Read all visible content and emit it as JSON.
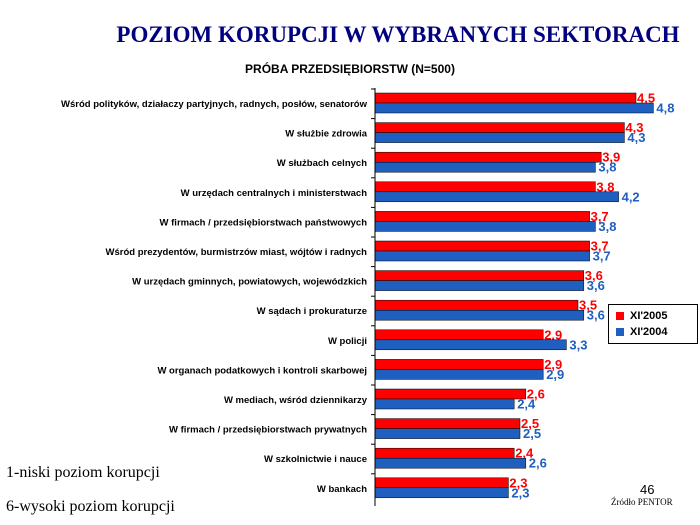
{
  "title": "POZIOM KORUPCJI W WYBRANYCH SEKTORACH",
  "subtitle": "PRÓBA PRZEDSIĘBIORSTW (N=500)",
  "chart_data": {
    "type": "bar",
    "orientation": "horizontal",
    "categories": [
      "Wśród polityków, działaczy partyjnych, radnych, posłów, senatorów",
      "W służbie zdrowia",
      "W służbach celnych",
      "W urzędach centralnych i ministerstwach",
      "W firmach / przedsiębiorstwach państwowych",
      "Wśród prezydentów, burmistrzów miast, wójtów i radnych",
      "W urzędach gminnych, powiatowych, wojewódzkich",
      "W sądach i prokuraturze",
      "W policji",
      "W organach podatkowych i kontroli skarbowej",
      "W mediach, wśród dziennikarzy",
      "W firmach / przedsiębiorstwach prywatnych",
      "W szkolnictwie i nauce",
      "W bankach"
    ],
    "series": [
      {
        "name": "XI'2005",
        "color": "#ff0000",
        "values": [
          4.5,
          4.3,
          3.9,
          3.8,
          3.7,
          3.7,
          3.6,
          3.5,
          2.9,
          2.9,
          2.6,
          2.5,
          2.4,
          2.3
        ],
        "labels": [
          "4,5",
          "4,3",
          "3,9",
          "3,8",
          "3,7",
          "3,7",
          "3,6",
          "3,5",
          "2,9",
          "2,9",
          "2,6",
          "2,5",
          "2,4",
          "2,3"
        ]
      },
      {
        "name": "XI'2004",
        "color": "#1f5fbf",
        "values": [
          4.8,
          4.3,
          3.8,
          4.2,
          3.8,
          3.7,
          3.6,
          3.6,
          3.3,
          2.9,
          2.4,
          2.5,
          2.6,
          2.3
        ],
        "labels": [
          "4,8",
          "4,3",
          "3,8",
          "4,2",
          "3,8",
          "3,7",
          "3,6",
          "3,6",
          "3,3",
          "2,9",
          "2,4",
          "2,5",
          "2,6",
          "2,3"
        ]
      }
    ],
    "legend_position": "right",
    "grid": false
  },
  "notes": {
    "scale_low": "1-niski poziom korupcji",
    "scale_high": "6-wysoki poziom korupcji"
  },
  "page_number": "46",
  "source": "Źródło PENTOR"
}
